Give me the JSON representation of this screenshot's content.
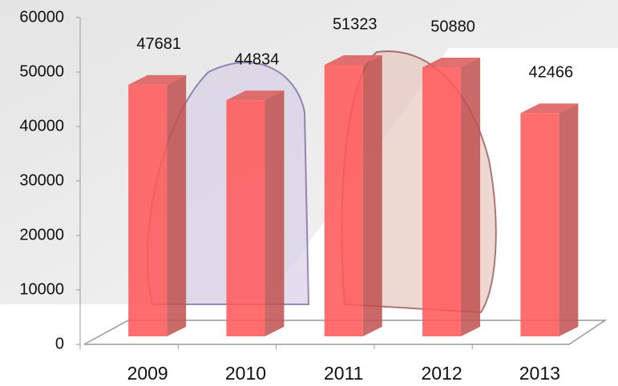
{
  "chart_data": {
    "type": "bar3d",
    "categories": [
      "2009",
      "2010",
      "2011",
      "2012",
      "2013"
    ],
    "values": [
      47681,
      44834,
      51323,
      50880,
      42466
    ],
    "color": "#ff5a5a",
    "ylim": [
      0,
      60000
    ],
    "yticks": [
      0,
      10000,
      20000,
      30000,
      40000,
      50000,
      60000
    ]
  }
}
